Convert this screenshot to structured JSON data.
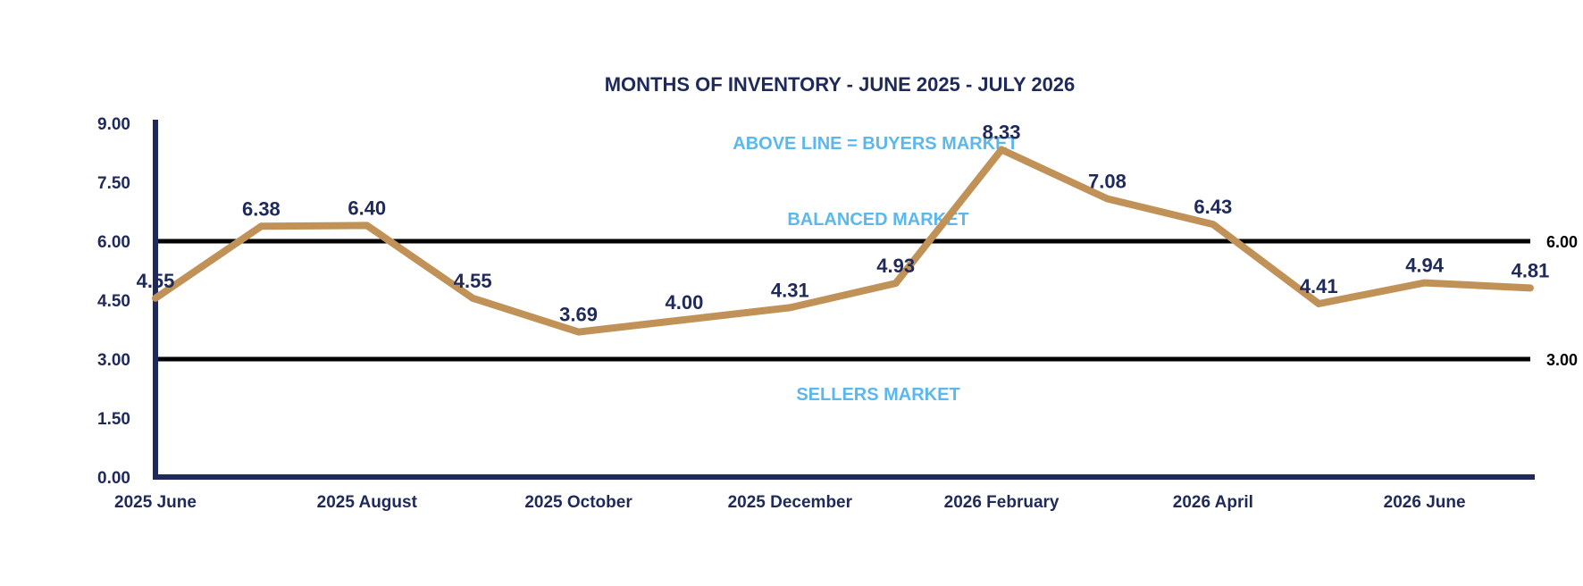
{
  "chart_data": {
    "type": "line",
    "title": "MONTHS OF INVENTORY - JUNE 2025 - JULY 2026",
    "xlabel": "",
    "ylabel": "",
    "categories": [
      "2025 June",
      "2025 July",
      "2025 August",
      "2025 September",
      "2025 October",
      "2025 November",
      "2025 December",
      "2026 January",
      "2026 February",
      "2026 March",
      "2026 April",
      "2026 May",
      "2026 June",
      "2026 July"
    ],
    "x_tick_labels": [
      "2025 June",
      "2025 August",
      "2025 October",
      "2025 December",
      "2026 February",
      "2026 April",
      "2026 June"
    ],
    "values": [
      4.55,
      6.38,
      6.4,
      4.55,
      3.69,
      4.0,
      4.31,
      4.93,
      8.33,
      7.08,
      6.43,
      4.41,
      4.94,
      4.81
    ],
    "data_labels": [
      "4.55",
      "6.38",
      "6.40",
      "4.55",
      "3.69",
      "4.00",
      "4.31",
      "4.93",
      "8.33",
      "7.08",
      "6.43",
      "4.41",
      "4.94",
      "4.81"
    ],
    "ylim": [
      0,
      9
    ],
    "y_ticks": [
      "0.00",
      "1.50",
      "3.00",
      "4.50",
      "6.00",
      "7.50",
      "9.00"
    ],
    "grid": false,
    "legend": "none",
    "reference_lines": [
      {
        "value": 6.0,
        "label": "6.00"
      },
      {
        "value": 3.0,
        "label": "3.00"
      }
    ],
    "annotations": {
      "buyers": "ABOVE LINE = BUYERS MARKET",
      "balanced": "BALANCED MARKET",
      "sellers": "SELLERS MARKET"
    },
    "colors": {
      "line": "#c19257",
      "axis": "#1f2a5a",
      "text": "#1f2a5a",
      "reference": "#000000",
      "zone": "#5bb8ec"
    }
  }
}
